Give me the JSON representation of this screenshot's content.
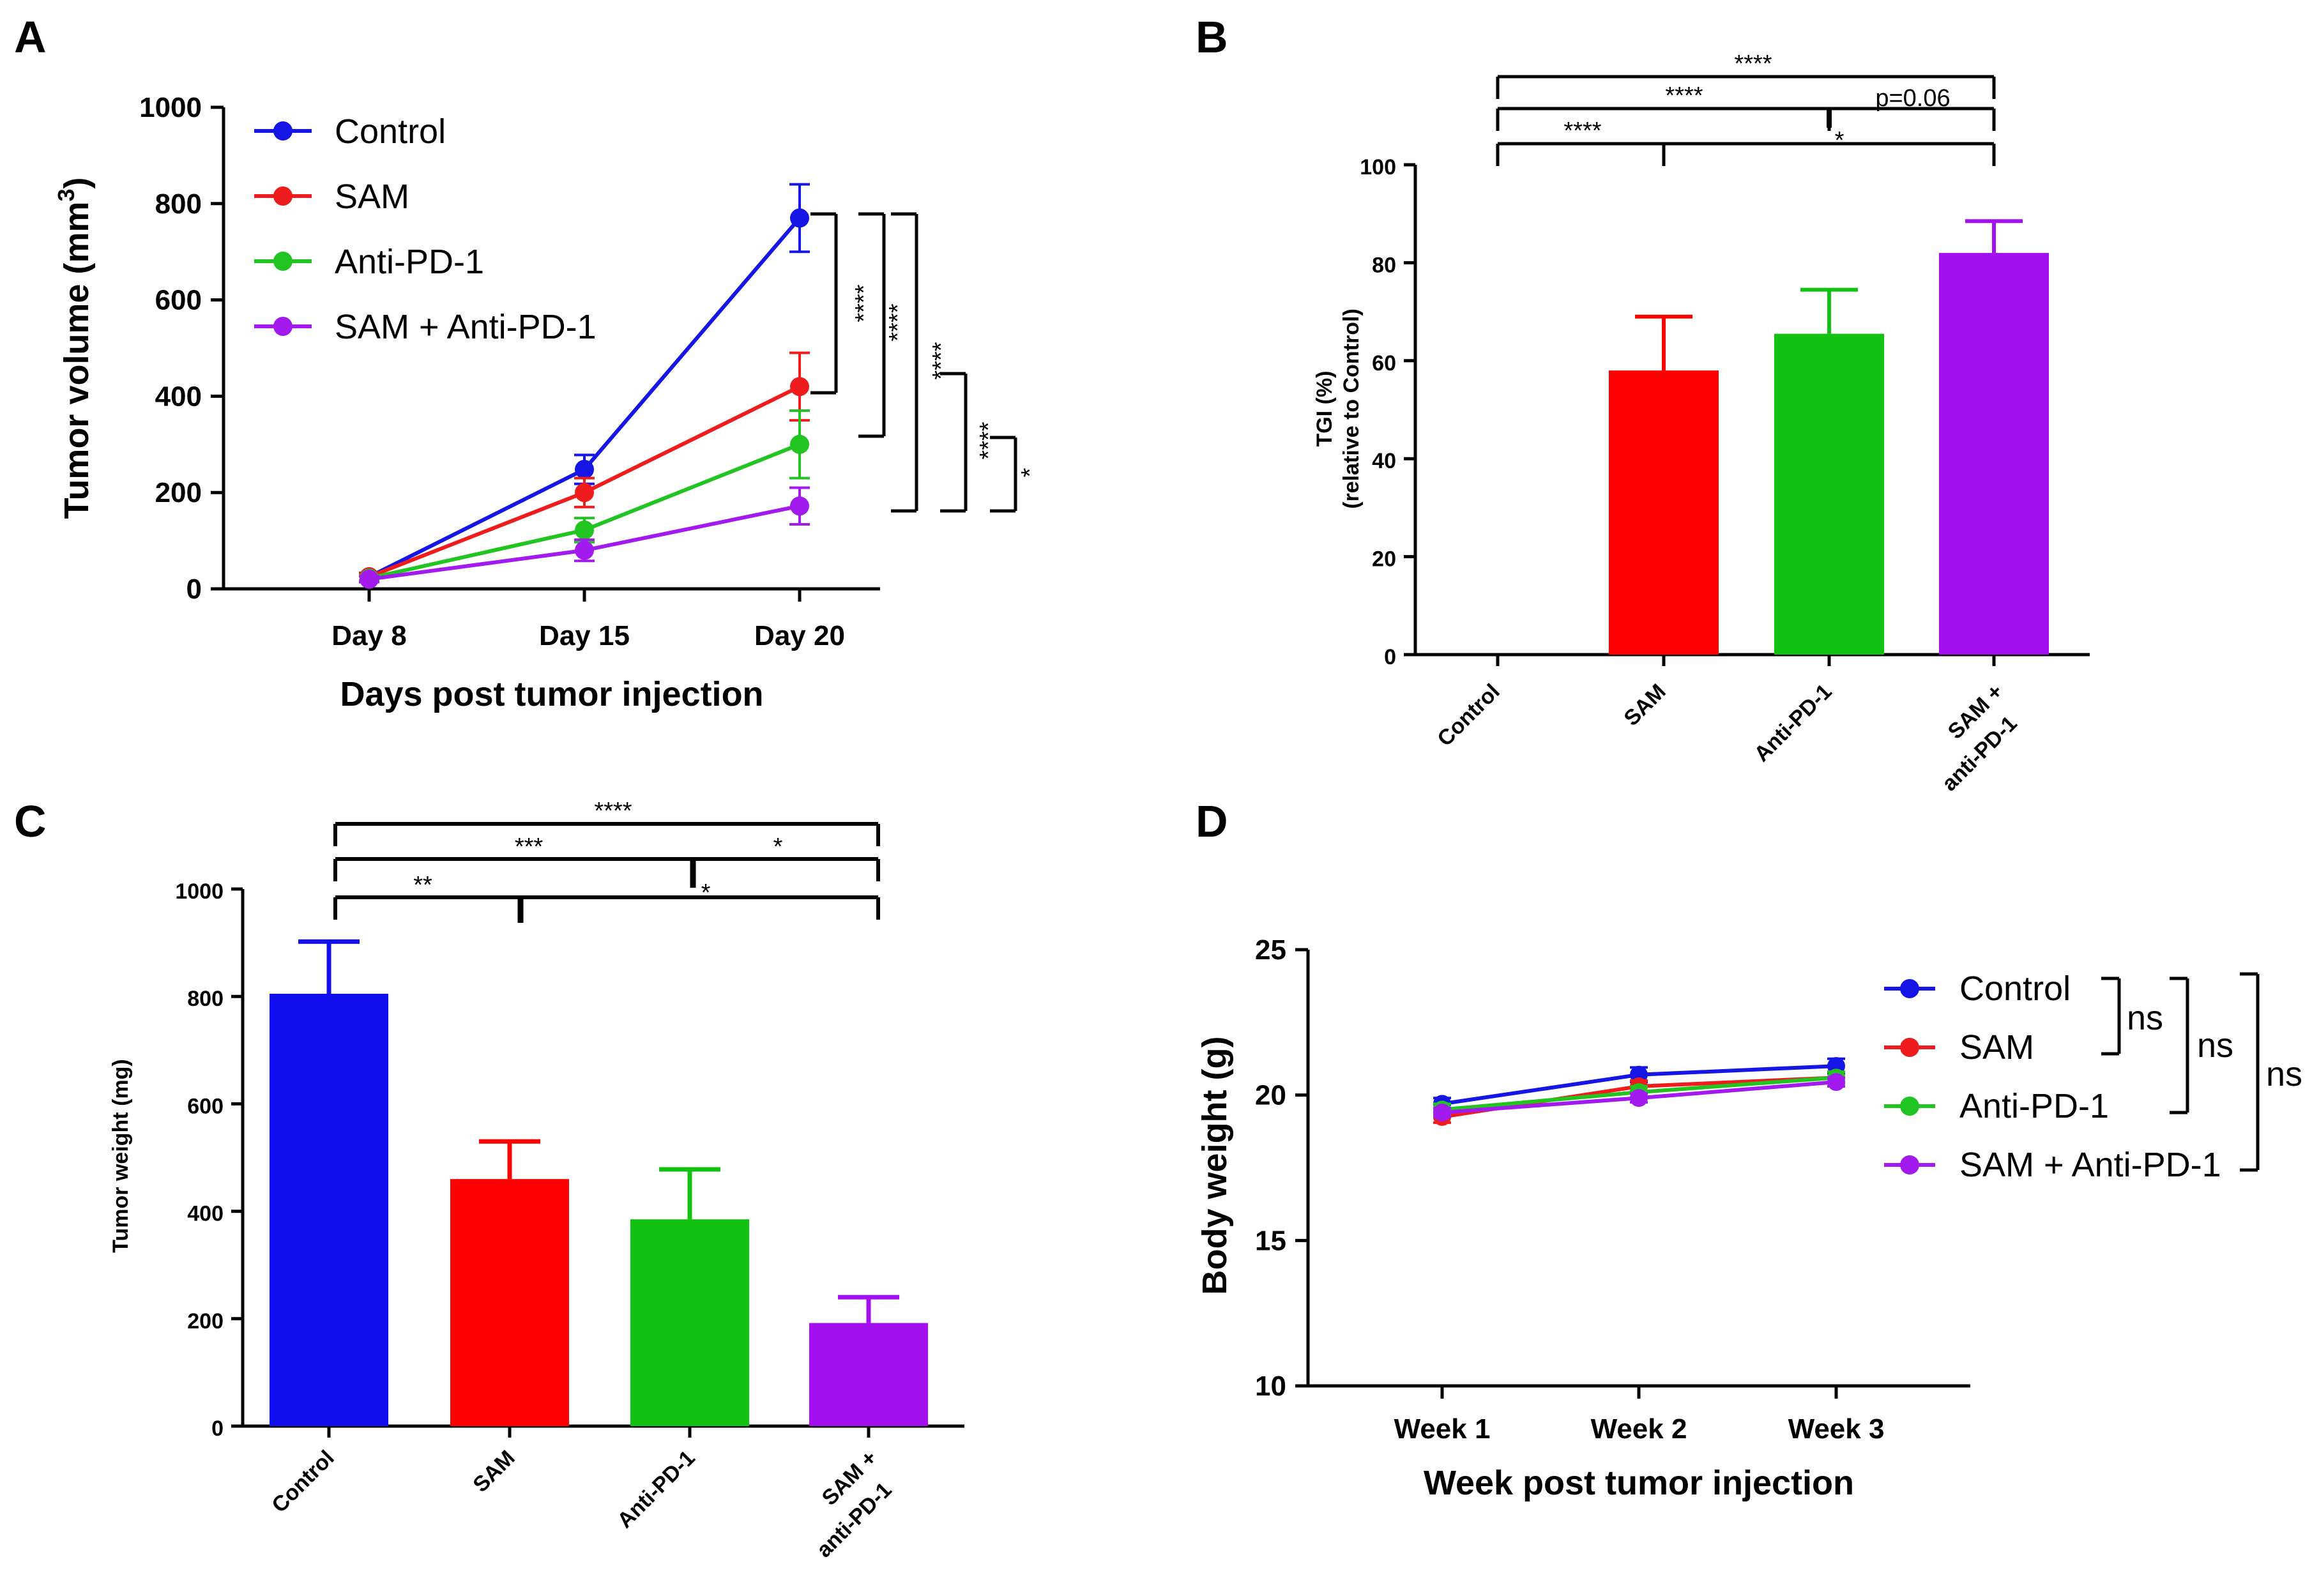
{
  "chart_data": [
    {
      "panel": "A",
      "type": "line",
      "x": [
        "Day 8",
        "Day 15",
        "Day 20"
      ],
      "ylabel": "Tumor volume (mm",
      "ylabel_sup": "3",
      "ylabel_end": ")",
      "xlabel": "Days post tumor injection",
      "ylim": [
        0,
        1000
      ],
      "yticks": [
        "0",
        "200",
        "400",
        "600",
        "800",
        "1000"
      ],
      "yticks_values": [
        0,
        200,
        400,
        600,
        800,
        1000
      ],
      "series": [
        {
          "name": "Control",
          "color": "#1515e6",
          "values": [
            25,
            248,
            770
          ],
          "err": [
            8,
            30,
            70
          ]
        },
        {
          "name": "SAM",
          "color": "#ee1c1c",
          "values": [
            25,
            200,
            420
          ],
          "err": [
            8,
            30,
            70
          ]
        },
        {
          "name": "Anti-PD-1",
          "color": "#22c422",
          "values": [
            22,
            122,
            300
          ],
          "err": [
            6,
            25,
            70
          ]
        },
        {
          "name": "SAM + Anti-PD-1",
          "color": "#a21aee",
          "values": [
            20,
            80,
            172
          ],
          "err": [
            6,
            22,
            38
          ]
        }
      ],
      "significance": [
        "****",
        "****",
        "****",
        "****",
        "*"
      ]
    },
    {
      "panel": "B",
      "type": "bar",
      "categories": [
        "Control",
        "SAM",
        "Anti-PD-1",
        "SAM +",
        "anti-PD-1"
      ],
      "bars": [
        {
          "name": "Control",
          "value": 0,
          "err": 0,
          "color": "#ffffff"
        },
        {
          "name": "SAM",
          "value": 58,
          "err": 11,
          "color": "#ff0000"
        },
        {
          "name": "Anti-PD-1",
          "value": 65.5,
          "err": 9,
          "color": "#11c211"
        },
        {
          "name": "SAM + anti-PD-1",
          "value": 82,
          "err": 6.5,
          "color": "#a40ff0"
        }
      ],
      "ylabel_line1": "TGI (%)",
      "ylabel_line2": "(relative to Control)",
      "ylim": [
        0,
        100
      ],
      "yticks": [
        "0",
        "20",
        "40",
        "60",
        "80",
        "100"
      ],
      "yticks_values": [
        0,
        20,
        40,
        60,
        80,
        100
      ],
      "significance": [
        "****",
        "****",
        "p=0.06",
        "****",
        "*"
      ]
    },
    {
      "panel": "C",
      "type": "bar",
      "categories": [
        "Control",
        "SAM",
        "Anti-PD-1",
        "SAM +",
        "anti-PD-1"
      ],
      "bars": [
        {
          "name": "Control",
          "value": 805,
          "err": 97,
          "color": "#1010ee"
        },
        {
          "name": "SAM",
          "value": 460,
          "err": 70,
          "color": "#ff0000"
        },
        {
          "name": "Anti-PD-1",
          "value": 385,
          "err": 93,
          "color": "#11c211"
        },
        {
          "name": "SAM + anti-PD-1",
          "value": 192,
          "err": 48,
          "color": "#a40ff0"
        }
      ],
      "ylabel": "Tumor weight (mg)",
      "ylim": [
        0,
        1000
      ],
      "yticks": [
        "0",
        "200",
        "400",
        "600",
        "800",
        "1000"
      ],
      "yticks_values": [
        0,
        200,
        400,
        600,
        800,
        1000
      ],
      "significance": [
        "****",
        "***",
        "*",
        "**",
        "*"
      ]
    },
    {
      "panel": "D",
      "type": "line",
      "x": [
        "Week 1",
        "Week 2",
        "Week 3"
      ],
      "ylabel": "Body weight (g)",
      "xlabel": "Week post tumor injection",
      "ylim": [
        10,
        25
      ],
      "yticks": [
        "10",
        "15",
        "20",
        "25"
      ],
      "yticks_values": [
        10,
        15,
        20,
        25
      ],
      "series": [
        {
          "name": "Control",
          "color": "#1515e6",
          "values": [
            19.7,
            20.7,
            21.0
          ],
          "err": [
            0.2,
            0.25,
            0.25
          ]
        },
        {
          "name": "SAM",
          "color": "#ee1c1c",
          "values": [
            19.25,
            20.3,
            20.6
          ],
          "err": [
            0.2,
            0.2,
            0.2
          ]
        },
        {
          "name": "Anti-PD-1",
          "color": "#22c422",
          "values": [
            19.5,
            20.1,
            20.6
          ],
          "err": [
            0.2,
            0.2,
            0.2
          ]
        },
        {
          "name": "SAM + Anti-PD-1",
          "color": "#a21aee",
          "values": [
            19.4,
            19.9,
            20.45
          ],
          "err": [
            0.15,
            0.15,
            0.15
          ]
        }
      ],
      "significance": [
        "ns",
        "ns",
        "ns"
      ]
    }
  ]
}
